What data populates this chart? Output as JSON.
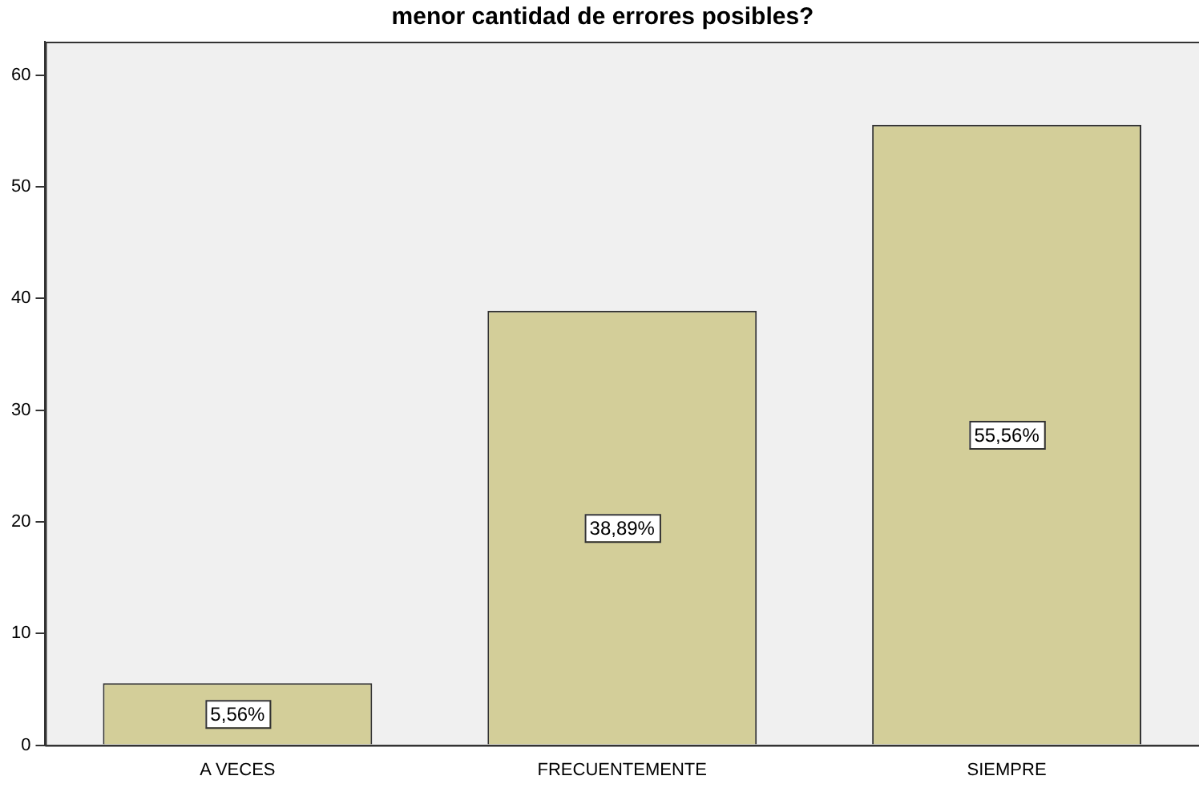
{
  "chart_data": {
    "type": "bar",
    "title": "menor cantidad de errores posibles?",
    "categories": [
      "A VECES",
      "FRECUENTEMENTE",
      "SIEMPRE"
    ],
    "values": [
      5.56,
      38.89,
      55.56
    ],
    "color": "#d3ce99",
    "value_labels": [
      "5,56%",
      "38,89%",
      "55,56%"
    ],
    "ylim": [
      0,
      63
    ],
    "yticks": [
      0,
      10,
      20,
      30,
      40,
      50,
      60
    ],
    "grid": false,
    "legend": false
  }
}
